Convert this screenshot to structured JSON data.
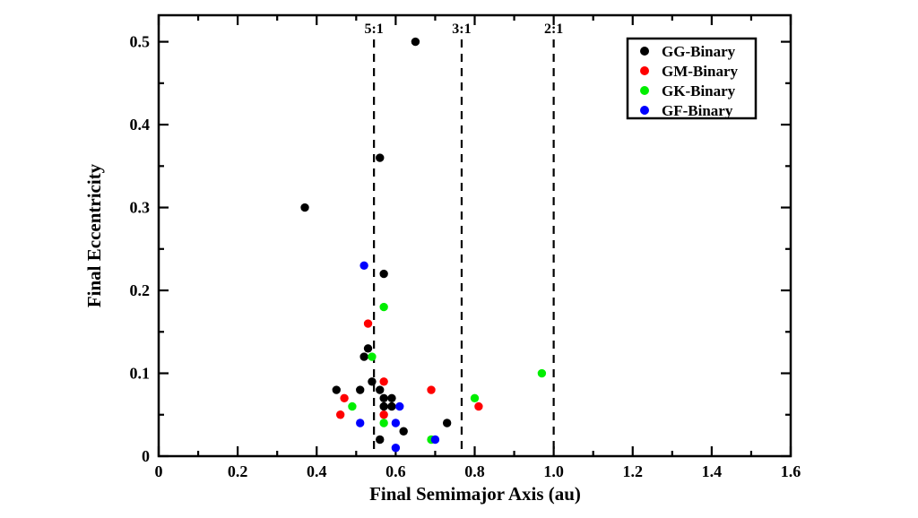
{
  "chart_data": {
    "type": "scatter",
    "title": "",
    "xlabel": "Final Semimajor Axis (au)",
    "ylabel": "Final Eccentricity",
    "xlim": [
      0,
      1.6
    ],
    "ylim": [
      0,
      0.532
    ],
    "grid": false,
    "x_tick_labels": [
      "0",
      "0.2",
      "0.4",
      "0.6",
      "0.8",
      "1.0",
      "1.2",
      "1.4",
      "1.6"
    ],
    "x_major_ticks": [
      0,
      0.2,
      0.4,
      0.6,
      0.8,
      1.0,
      1.2,
      1.4,
      1.6
    ],
    "x_minor_ticks": [
      0.1,
      0.3,
      0.5,
      0.7,
      0.9,
      1.1,
      1.3,
      1.5
    ],
    "y_tick_labels": [
      "0",
      "0.1",
      "0.2",
      "0.3",
      "0.4",
      "0.5"
    ],
    "y_major_ticks": [
      0,
      0.1,
      0.2,
      0.3,
      0.4,
      0.5
    ],
    "y_minor_ticks": [
      0.05,
      0.15,
      0.25,
      0.35,
      0.45
    ],
    "legend_position": "top-right",
    "vlines": [
      {
        "label": "5:1",
        "x": 0.545
      },
      {
        "label": "3:1",
        "x": 0.767
      },
      {
        "label": "2:1",
        "x": 1.0
      }
    ],
    "series": [
      {
        "name": "GG-Binary",
        "color": "#000000",
        "points": [
          [
            0.65,
            0.5
          ],
          [
            0.56,
            0.36
          ],
          [
            0.37,
            0.3
          ],
          [
            0.57,
            0.22
          ],
          [
            0.53,
            0.13
          ],
          [
            0.52,
            0.12
          ],
          [
            0.54,
            0.09
          ],
          [
            0.45,
            0.08
          ],
          [
            0.51,
            0.08
          ],
          [
            0.56,
            0.08
          ],
          [
            0.57,
            0.07
          ],
          [
            0.59,
            0.07
          ],
          [
            0.57,
            0.06
          ],
          [
            0.59,
            0.06
          ],
          [
            0.73,
            0.04
          ],
          [
            0.62,
            0.03
          ],
          [
            0.56,
            0.02
          ]
        ]
      },
      {
        "name": "GM-Binary",
        "color": "#ff0000",
        "points": [
          [
            0.53,
            0.16
          ],
          [
            0.57,
            0.09
          ],
          [
            0.69,
            0.08
          ],
          [
            0.47,
            0.07
          ],
          [
            0.81,
            0.06
          ],
          [
            0.46,
            0.05
          ],
          [
            0.57,
            0.05
          ]
        ]
      },
      {
        "name": "GK-Binary",
        "color": "#00ee00",
        "points": [
          [
            0.57,
            0.18
          ],
          [
            0.54,
            0.12
          ],
          [
            0.97,
            0.1
          ],
          [
            0.8,
            0.07
          ],
          [
            0.49,
            0.06
          ],
          [
            0.57,
            0.04
          ],
          [
            0.69,
            0.02
          ]
        ]
      },
      {
        "name": "GF-Binary",
        "color": "#0000ff",
        "points": [
          [
            0.52,
            0.23
          ],
          [
            0.61,
            0.06
          ],
          [
            0.51,
            0.04
          ],
          [
            0.6,
            0.04
          ],
          [
            0.7,
            0.02
          ],
          [
            0.6,
            0.01
          ]
        ]
      }
    ]
  }
}
